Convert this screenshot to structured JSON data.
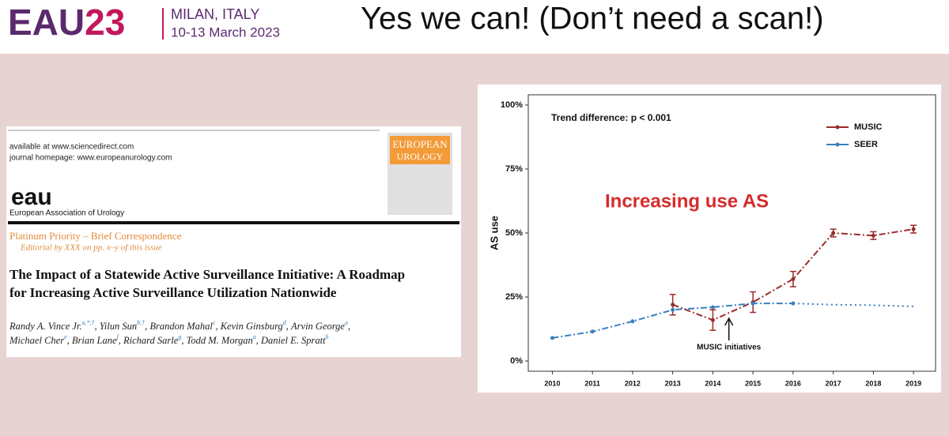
{
  "header": {
    "brand_a": "EAU",
    "brand_b": "23",
    "city": "MILAN, ITALY",
    "dates": "10-13 March 2023",
    "title": "Yes we can! (Don’t need a scan!)"
  },
  "paper": {
    "line1": "available at www.sciencedirect.com",
    "line2": "journal homepage: www.europeanurology.com",
    "logo": "eau",
    "society": "European Association of Urology",
    "cover_title_1": "EUROPEAN",
    "cover_title_2": "UROLOGY",
    "kicker": "Platinum Priority – Brief Correspondence",
    "editorial": "Editorial by XXX on pp. x–y of this issue",
    "title_1": "The Impact of a Statewide Active Surveillance Initiative: A Roadmap",
    "title_2": "for Increasing Active Surveillance Utilization Nationwide",
    "authors": [
      {
        "name": "Randy A. Vince Jr.",
        "sup": "a,*,†",
        "sep": ","
      },
      {
        "name": "Yilun Sun",
        "sup": "b,†",
        "sep": ","
      },
      {
        "name": "Brandon Mahal",
        "sup": "c",
        "sep": ","
      },
      {
        "name": "Kevin Ginsburg",
        "sup": "d",
        "sep": ","
      },
      {
        "name": "Arvin George",
        "sup": "a",
        "sep": ","
      },
      {
        "name": "Michael Cher",
        "sup": "e",
        "sep": ","
      },
      {
        "name": "Brian Lane",
        "sup": "f",
        "sep": ","
      },
      {
        "name": "Richard Sarle",
        "sup": "g",
        "sep": ","
      },
      {
        "name": "Todd M. Morgan",
        "sup": "a",
        "sep": ","
      },
      {
        "name": "Daniel E. Spratt",
        "sup": "h"
      }
    ]
  },
  "chart_data": {
    "type": "line",
    "annotation": "Trend difference: p < 0.001",
    "headline": "Increasing use AS",
    "arrow_label": "MUSIC initiatives",
    "arrow_x": 2014.4,
    "y_label": "AS use",
    "x": [
      2010,
      2011,
      2012,
      2013,
      2014,
      2015,
      2016,
      2017,
      2018,
      2019
    ],
    "xlim": [
      2009.4,
      2019.55
    ],
    "xticks": [
      2010,
      2011,
      2012,
      2013,
      2014,
      2015,
      2016,
      2017,
      2018,
      2019
    ],
    "ylim": [
      -4,
      104
    ],
    "yticks": [
      {
        "value": 0,
        "label": "0%"
      },
      {
        "value": 25,
        "label": "25%"
      },
      {
        "value": 50,
        "label": "50%"
      },
      {
        "value": 75,
        "label": "75%"
      },
      {
        "value": 100,
        "label": "100%"
      }
    ],
    "legend": "top-right",
    "series": [
      {
        "name": "MUSIC",
        "color": "#9b2c2c",
        "values": [
          null,
          null,
          null,
          22,
          16,
          23,
          32,
          50,
          49,
          51.5
        ],
        "errors": [
          null,
          null,
          null,
          4,
          4,
          4,
          3,
          1.5,
          1.5,
          1.5
        ]
      },
      {
        "name": "SEER",
        "color": "#3a7fc1",
        "values": [
          9,
          11.5,
          15.5,
          20,
          21,
          22.5,
          22.5,
          null,
          null,
          null
        ],
        "projection_x": [
          2016,
          2017,
          2018,
          2019
        ],
        "projection_values": [
          22.5,
          22,
          21.8,
          21.3
        ]
      }
    ]
  }
}
